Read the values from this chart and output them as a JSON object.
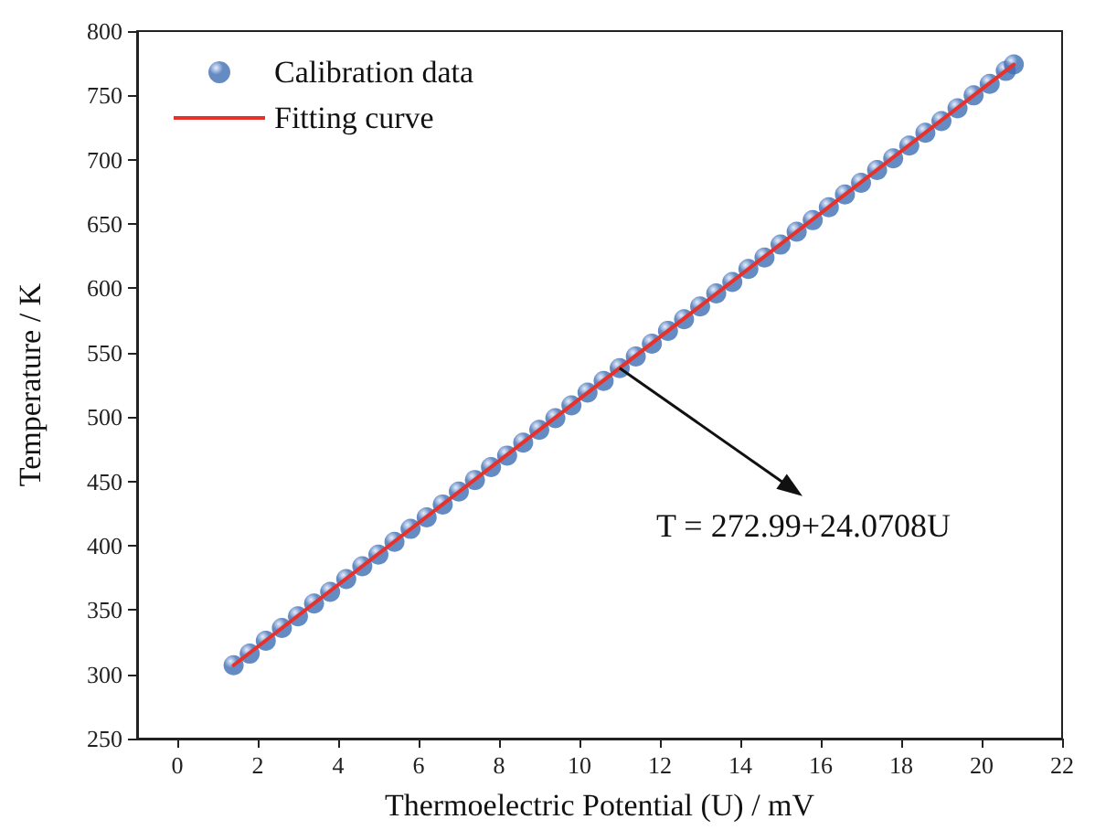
{
  "chart_data": {
    "type": "scatter",
    "xlabel": "Thermoelectric Potential (U) / mV",
    "ylabel": "Temperature / K",
    "xlim": [
      -1,
      22
    ],
    "xticks": [
      0,
      2,
      4,
      6,
      8,
      10,
      12,
      14,
      16,
      18,
      20,
      22
    ],
    "ylim": [
      250,
      800
    ],
    "yticks": [
      250,
      300,
      350,
      400,
      450,
      500,
      550,
      600,
      650,
      700,
      750,
      800
    ],
    "legend": "top left",
    "marker": "circle",
    "series": [
      {
        "name": "Calibration data",
        "color": "#3f6eb5",
        "x": [
          1.4,
          1.8,
          2.2,
          2.6,
          3.0,
          3.4,
          3.8,
          4.2,
          4.6,
          5.0,
          5.4,
          5.8,
          6.2,
          6.6,
          7.0,
          7.4,
          7.8,
          8.2,
          8.6,
          9.0,
          9.4,
          9.8,
          10.2,
          10.6,
          11.0,
          11.4,
          11.8,
          12.2,
          12.6,
          13.0,
          13.4,
          13.8,
          14.2,
          14.6,
          15.0,
          15.4,
          15.8,
          16.2,
          16.6,
          17.0,
          17.4,
          17.8,
          18.2,
          18.6,
          19.0,
          19.4,
          19.8,
          20.2,
          20.6,
          20.8
        ],
        "values": [
          307,
          316,
          326,
          336,
          345,
          355,
          364,
          374,
          384,
          393,
          403,
          413,
          422,
          432,
          442,
          451,
          461,
          470,
          480,
          490,
          499,
          509,
          519,
          528,
          538,
          547,
          557,
          567,
          576,
          586,
          596,
          605,
          615,
          624,
          634,
          644,
          653,
          663,
          673,
          682,
          692,
          701,
          711,
          721,
          730,
          740,
          750,
          759,
          769,
          774
        ]
      },
      {
        "name": "Fitting curve",
        "type": "line",
        "color": "#e8312a",
        "x": [
          1.4,
          20.8
        ],
        "values": [
          307,
          774
        ],
        "marker": "none",
        "line_style": "solid"
      }
    ],
    "annotations": [
      {
        "text": "T = 272.99+24.0708U",
        "x": 11,
        "y": 538
      }
    ]
  }
}
